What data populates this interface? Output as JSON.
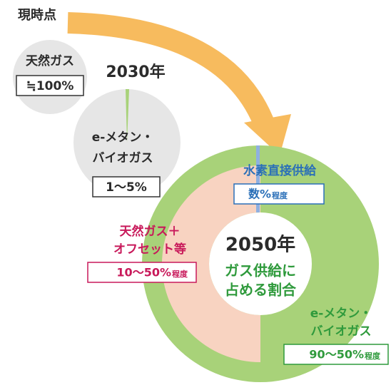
{
  "now_label": "現時点",
  "current": {
    "label": "天然ガス",
    "share": "≒100%"
  },
  "y2030": {
    "title": "2030年",
    "label_lines": [
      "e-メタン・",
      "バイオガス"
    ],
    "share": "1～5%"
  },
  "y2050": {
    "title": "2050年",
    "subtitle_lines": [
      "ガス供給に",
      "占める割合"
    ],
    "hydrogen": {
      "label": "水素直接供給",
      "share": "数%",
      "suffix": "程度"
    },
    "natural_gas": {
      "label_lines": [
        "天然ガス＋",
        "オフセット等"
      ],
      "share": "10～50%",
      "suffix": "程度"
    },
    "emethane": {
      "label_lines": [
        "e-メタン・",
        "バイオガス"
      ],
      "share": "90～50%",
      "suffix": "程度"
    }
  }
}
